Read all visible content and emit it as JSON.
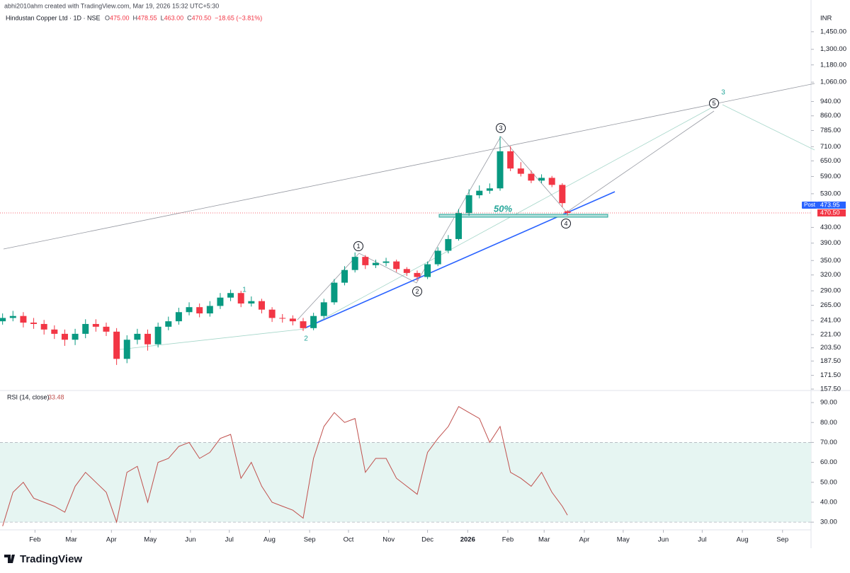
{
  "header": {
    "author": "abhi2010ahm created with TradingView.com, Mar 19, 2026 15:32 UTC+5:30",
    "symbol": "Hindustan Copper Ltd · 1D · NSE",
    "ohlc": [
      {
        "key": "O",
        "value": "475.00"
      },
      {
        "key": "H",
        "value": "478.55"
      },
      {
        "key": "L",
        "value": "463.00"
      },
      {
        "key": "C",
        "value": "470.50"
      },
      {
        "key": "",
        "value": "−18.65 (−3.81%)"
      }
    ]
  },
  "footer": "TradingView",
  "chart_data": [
    {
      "type": "candlestick",
      "currency": "INR",
      "log_scale": true,
      "grid": false,
      "up_color": "#089981",
      "down_color": "#f23645",
      "x": [
        -25,
        -17,
        -9,
        -1,
        7,
        15,
        23,
        31,
        39,
        47,
        55,
        63,
        71,
        79,
        87,
        95,
        103,
        111,
        119,
        127,
        135,
        143,
        151,
        159,
        167,
        175,
        183,
        191,
        199,
        207,
        215,
        223,
        231,
        239,
        247,
        255,
        263,
        271,
        279,
        287,
        295,
        303,
        311,
        319,
        327,
        335,
        343,
        351,
        359,
        367,
        375,
        383,
        391,
        399,
        407,
        411
      ],
      "open": [
        240,
        245,
        248,
        238,
        236,
        228,
        222,
        214,
        222,
        236,
        232,
        225,
        190,
        214,
        222,
        208,
        232,
        240,
        254,
        262,
        252,
        264,
        278,
        286,
        268,
        272,
        258,
        245,
        244,
        240,
        230,
        248,
        270,
        305,
        330,
        358,
        340,
        345,
        348,
        332,
        324,
        316,
        342,
        372,
        400,
        470,
        525,
        540,
        548,
        690,
        620,
        600,
        575,
        585,
        560,
        475
      ],
      "high": [
        252,
        256,
        254,
        245,
        242,
        234,
        228,
        229,
        243,
        243,
        238,
        230,
        220,
        229,
        228,
        238,
        247,
        261,
        270,
        268,
        272,
        286,
        292,
        290,
        280,
        276,
        262,
        251,
        249,
        245,
        253,
        276,
        312,
        338,
        368,
        362,
        352,
        356,
        352,
        336,
        329,
        348,
        380,
        410,
        482,
        545,
        558,
        565,
        757,
        712,
        645,
        612,
        598,
        592,
        566,
        478.55
      ],
      "low": [
        235,
        240,
        231,
        229,
        221,
        215,
        206,
        207,
        216,
        225,
        219,
        183,
        185,
        208,
        200,
        204,
        227,
        235,
        249,
        246,
        247,
        259,
        272,
        262,
        263,
        252,
        239,
        238,
        234,
        226,
        227,
        244,
        266,
        300,
        325,
        332,
        334,
        338,
        326,
        318,
        309,
        312,
        338,
        366,
        396,
        462,
        515,
        530,
        540,
        610,
        590,
        566,
        566,
        552,
        488,
        463
      ],
      "close": [
        245,
        248,
        238,
        236,
        228,
        222,
        214,
        222,
        236,
        232,
        225,
        190,
        214,
        222,
        208,
        232,
        240,
        254,
        262,
        252,
        264,
        278,
        286,
        268,
        272,
        258,
        245,
        244,
        240,
        230,
        248,
        270,
        305,
        330,
        358,
        340,
        345,
        348,
        332,
        324,
        316,
        342,
        372,
        400,
        470,
        525,
        540,
        548,
        690,
        620,
        600,
        575,
        585,
        560,
        500,
        470.5
      ],
      "xlim": [
        -27,
        599
      ],
      "xticks": [
        {
          "value": 0,
          "label": "Feb"
        },
        {
          "value": 28,
          "label": "Mar"
        },
        {
          "value": 59,
          "label": "Apr"
        },
        {
          "value": 89,
          "label": "May"
        },
        {
          "value": 120,
          "label": "Jun"
        },
        {
          "value": 150,
          "label": "Jul"
        },
        {
          "value": 181,
          "label": "Aug"
        },
        {
          "value": 212,
          "label": "Sep"
        },
        {
          "value": 242,
          "label": "Oct"
        },
        {
          "value": 273,
          "label": "Nov"
        },
        {
          "value": 303,
          "label": "Dec"
        },
        {
          "value": 334,
          "label": "2026"
        },
        {
          "value": 365,
          "label": "Feb"
        },
        {
          "value": 393,
          "label": "Mar"
        },
        {
          "value": 424,
          "label": "Apr"
        },
        {
          "value": 454,
          "label": "May"
        },
        {
          "value": 485,
          "label": "Jun"
        },
        {
          "value": 515,
          "label": "Jul"
        },
        {
          "value": 546,
          "label": "Aug"
        },
        {
          "value": 577,
          "label": "Sep"
        }
      ],
      "ylim": [
        157.5,
        1690
      ],
      "yticks": [
        {
          "value": 1450,
          "label": "1,450.00"
        },
        {
          "value": 1300,
          "label": "1,300.00"
        },
        {
          "value": 1180,
          "label": "1,180.00"
        },
        {
          "value": 1060,
          "label": "1,060.00"
        },
        {
          "value": 940,
          "label": "940.00"
        },
        {
          "value": 860,
          "label": "860.00"
        },
        {
          "value": 785,
          "label": "785.00"
        },
        {
          "value": 710,
          "label": "710.00"
        },
        {
          "value": 650,
          "label": "650.00"
        },
        {
          "value": 590,
          "label": "590.00"
        },
        {
          "value": 530,
          "label": "530.00"
        },
        {
          "value": 430,
          "label": "430.00"
        },
        {
          "value": 390,
          "label": "390.00"
        },
        {
          "value": 350,
          "label": "350.00"
        },
        {
          "value": 320,
          "label": "320.00"
        },
        {
          "value": 290,
          "label": "290.00"
        },
        {
          "value": 265,
          "label": "265.00"
        },
        {
          "value": 241,
          "label": "241.00"
        },
        {
          "value": 221,
          "label": "221.00"
        },
        {
          "value": 203.5,
          "label": "203.50"
        },
        {
          "value": 187.5,
          "label": "187.50"
        },
        {
          "value": 171.5,
          "label": "171.50"
        },
        {
          "value": 157.5,
          "label": "157.50"
        }
      ],
      "post_tag": {
        "name": "Post",
        "price": "473.95"
      },
      "last_tag": "470.50",
      "wave_labels": [
        "1",
        "2",
        "3",
        "4",
        "5"
      ],
      "degree_labels": [
        "1",
        "2",
        "3"
      ],
      "fib_label": "50%"
    },
    {
      "type": "line",
      "title": "RSI (14, close)",
      "value_label": "33.48",
      "color": "#c0504d",
      "band_color": "#e6f5f2",
      "x": [
        -25,
        -17,
        -9,
        -1,
        7,
        15,
        23,
        31,
        39,
        47,
        55,
        63,
        71,
        79,
        87,
        95,
        103,
        111,
        119,
        127,
        135,
        143,
        151,
        159,
        167,
        175,
        183,
        191,
        199,
        207,
        215,
        223,
        231,
        239,
        247,
        255,
        263,
        271,
        279,
        287,
        295,
        303,
        311,
        319,
        327,
        335,
        343,
        351,
        359,
        367,
        375,
        383,
        391,
        399,
        407,
        411
      ],
      "values": [
        28,
        45,
        50,
        42,
        40,
        38,
        35,
        48,
        55,
        50,
        45,
        30,
        55,
        58,
        40,
        60,
        62,
        68,
        70,
        62,
        65,
        72,
        74,
        52,
        60,
        48,
        40,
        38,
        36,
        32,
        62,
        78,
        85,
        80,
        82,
        55,
        62,
        62,
        52,
        48,
        44,
        65,
        72,
        78,
        88,
        85,
        82,
        70,
        78,
        55,
        52,
        48,
        55,
        45,
        38,
        33.48
      ],
      "band": [
        30,
        70
      ],
      "xlim": [
        -27,
        599
      ],
      "ylim": [
        26.5,
        95.7
      ],
      "yticks": [
        {
          "value": 90,
          "label": "90.00"
        },
        {
          "value": 80,
          "label": "80.00"
        },
        {
          "value": 70,
          "label": "70.00"
        },
        {
          "value": 60,
          "label": "60.00"
        },
        {
          "value": 50,
          "label": "50.00"
        },
        {
          "value": 40,
          "label": "40.00"
        },
        {
          "value": 30,
          "label": "30.00"
        }
      ]
    }
  ]
}
